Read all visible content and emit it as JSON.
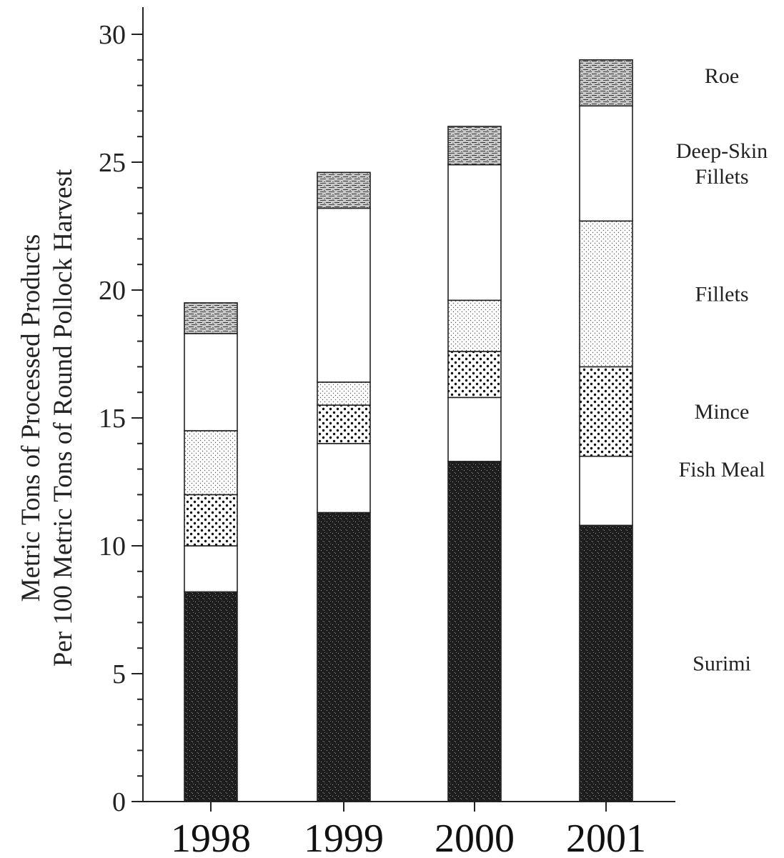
{
  "chart_data": {
    "type": "bar",
    "stacked": true,
    "categories": [
      "1998",
      "1999",
      "2000",
      "2001"
    ],
    "series": [
      {
        "name": "Surimi",
        "values": [
          8.2,
          11.3,
          13.3,
          10.8
        ]
      },
      {
        "name": "Fish Meal",
        "values": [
          1.8,
          2.7,
          2.5,
          2.7
        ]
      },
      {
        "name": "Mince",
        "values": [
          2.0,
          1.5,
          1.8,
          3.5
        ]
      },
      {
        "name": "Fillets",
        "values": [
          2.5,
          0.9,
          2.0,
          5.7
        ]
      },
      {
        "name": "Deep-Skin\nFillets",
        "values": [
          3.8,
          6.8,
          5.3,
          4.5
        ]
      },
      {
        "name": "Roe",
        "values": [
          1.2,
          1.4,
          1.5,
          1.8
        ]
      }
    ],
    "title": "",
    "xlabel": "",
    "ylabel_lines": [
      "Metric Tons of Processed Products",
      "Per 100 Metric Tons of Round Pollock Harvest"
    ],
    "ylim": [
      0,
      30
    ],
    "yticks": [
      "0",
      "5",
      "10",
      "15",
      "20",
      "25",
      "30"
    ],
    "grid": false,
    "legend_position": "right, labels beside top bar"
  }
}
